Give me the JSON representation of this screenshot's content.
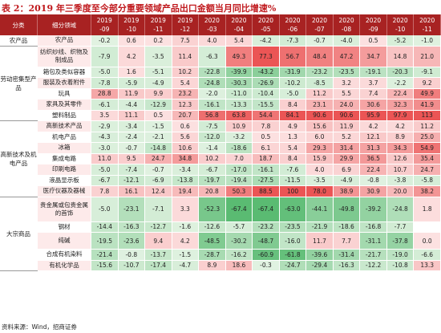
{
  "title": "表 2：2019 年三季度至今部分重要领域产品出口金额当月同比增速%",
  "header": {
    "cat": "分类",
    "sub": "细分领域",
    "months": [
      [
        "2019",
        "-09"
      ],
      [
        "2019",
        "-10"
      ],
      [
        "2019",
        "-11"
      ],
      [
        "2019",
        "-12"
      ],
      [
        "2020",
        "-03"
      ],
      [
        "2020",
        "-04"
      ],
      [
        "2020",
        "-05"
      ],
      [
        "2020",
        "-06"
      ],
      [
        "2020",
        "-07"
      ],
      [
        "2020",
        "-08"
      ],
      [
        "2020",
        "-09"
      ],
      [
        "2020",
        "-10"
      ],
      [
        "2020",
        "-11"
      ]
    ]
  },
  "groups": [
    {
      "name": "农产品",
      "rows": [
        {
          "name": "农产品",
          "cls": "r13",
          "v": [
            "-0.2",
            "0.6",
            "0.2",
            "7.5",
            "4.0",
            "5.4",
            "-4.2",
            "-7.3",
            "-0.7",
            "-4.0",
            "0.5",
            "-5.2",
            "-1.0"
          ]
        }
      ]
    },
    {
      "name": "劳动密集型产品",
      "rows": [
        {
          "name": "纺织纱线、织物及制成品",
          "cls": "r25",
          "v": [
            "-7.9",
            "4.2",
            "-3.5",
            "11.4",
            "-6.3",
            "49.3",
            "77.3",
            "56.7",
            "48.4",
            "47.2",
            "34.7",
            "14.8",
            "21.0"
          ]
        },
        {
          "name": "箱包及类似容器",
          "cls": "r13",
          "v": [
            "-5.0",
            "1.6",
            "-5.1",
            "10.2",
            "-22.8",
            "-39.9",
            "-43.2",
            "-31.9",
            "-23.2",
            "-23.5",
            "-19.1",
            "-20.3",
            "-9.1"
          ]
        },
        {
          "name": "服装及衣着附件",
          "cls": "r13",
          "v": [
            "-7.8",
            "-5.9",
            "-4.9",
            "5.4",
            "-24.8",
            "-30.3",
            "-26.9",
            "-10.2",
            "-8.5",
            "3.2",
            "3.7",
            "-2.2",
            "9.2"
          ]
        },
        {
          "name": "玩具",
          "cls": "r13",
          "v": [
            "28.8",
            "11.9",
            "9.9",
            "23.2",
            "-2.0",
            "-11.0",
            "-10.4",
            "-5.0",
            "11.2",
            "5.5",
            "7.4",
            "22.4",
            "49.9"
          ]
        },
        {
          "name": "家具及其零件",
          "cls": "r13",
          "v": [
            "-6.1",
            "-4.4",
            "-12.9",
            "12.3",
            "-16.1",
            "-13.3",
            "-15.5",
            "8.4",
            "23.1",
            "24.0",
            "30.6",
            "32.3",
            "41.9"
          ]
        },
        {
          "name": "塑料制品",
          "cls": "r13",
          "v": [
            "3.5",
            "11.1",
            "0.5",
            "20.7",
            "56.8",
            "63.8",
            "54.4",
            "84.1",
            "90.6",
            "90.6",
            "95.9",
            "97.9",
            "113"
          ]
        }
      ]
    },
    {
      "name": "高新技术及机电产品",
      "rows": [
        {
          "name": "高新技术产品",
          "cls": "r13",
          "v": [
            "-2.9",
            "-3.4",
            "-1.5",
            "0.6",
            "-7.5",
            "10.9",
            "7.8",
            "4.9",
            "15.6",
            "11.9",
            "4.2",
            "4.2",
            "11.2"
          ]
        },
        {
          "name": "机电产品",
          "cls": "r13",
          "v": [
            "-4.3",
            "-2.4",
            "-2.1",
            "5.6",
            "-12.0",
            "-3.2",
            "0.5",
            "1.3",
            "6.0",
            "5.2",
            "12.1",
            "8.9",
            "25.0"
          ]
        },
        {
          "name": "冰箱",
          "cls": "r13",
          "v": [
            "-3.0",
            "-0.7",
            "-14.8",
            "10.6",
            "-1.4",
            "-18.6",
            "6.1",
            "5.4",
            "29.3",
            "31.4",
            "31.3",
            "34.3",
            "54.9"
          ]
        },
        {
          "name": "集成电路",
          "cls": "r13",
          "v": [
            "11.0",
            "9.5",
            "24.7",
            "34.8",
            "10.2",
            "7.0",
            "18.7",
            "8.4",
            "15.9",
            "29.9",
            "36.5",
            "12.6",
            "35.4"
          ]
        },
        {
          "name": "印刷电路",
          "cls": "r13",
          "v": [
            "-5.0",
            "-7.4",
            "-0.7",
            "-3.4",
            "-6.7",
            "-17.0",
            "-16.1",
            "-7.6",
            "4.0",
            "6.9",
            "22.4",
            "10.7",
            "24.7"
          ]
        },
        {
          "name": "液晶显示板",
          "cls": "r13",
          "v": [
            "-6.7",
            "-12.1",
            "-6.9",
            "-13.8",
            "-19.7",
            "-19.4",
            "-27.5",
            "-11.5",
            "-3.5",
            "-4.9",
            "-0.8",
            "-3.8",
            "-5.8"
          ]
        },
        {
          "name": "医疗仪器及器械",
          "cls": "r13",
          "v": [
            "7.8",
            "16.1",
            "12.4",
            "19.4",
            "20.8",
            "50.3",
            "88.5",
            "100",
            "78.0",
            "38.9",
            "30.9",
            "20.0",
            "38.2"
          ]
        }
      ]
    },
    {
      "name": "大宗商品",
      "rows": [
        {
          "name": "贵金属或包贵金属的首饰",
          "cls": "r30",
          "v": [
            "-5.0",
            "-23.1",
            "-7.1",
            "3.3",
            "-52.3",
            "-67.4",
            "-67.4",
            "-63.0",
            "-44.1",
            "-49.8",
            "-39.2",
            "-24.8",
            "1.8"
          ]
        },
        {
          "name": "钢材",
          "cls": "r13",
          "v": [
            "-14.4",
            "-16.3",
            "-12.7",
            "-1.6",
            "-12.6",
            "-5.7",
            "-23.2",
            "-23.5",
            "-21.9",
            "-18.6",
            "-16.8",
            "-7.7",
            ""
          ]
        },
        {
          "name": "纯碱",
          "cls": "r20",
          "v": [
            "-19.5",
            "-23.6",
            "9.4",
            "4.2",
            "-48.5",
            "-30.2",
            "-48.7",
            "-16.0",
            "11.7",
            "7.7",
            "-31.1",
            "-37.8",
            "0.0"
          ]
        },
        {
          "name": "合成有机染料",
          "cls": "r13",
          "v": [
            "-21.4",
            "-0.8",
            "-13.7",
            "-1.5",
            "-28.7",
            "-16.2",
            "-60.9",
            "-61.8",
            "-39.6",
            "-31.4",
            "-21.7",
            "-19.0",
            "-6.6"
          ]
        },
        {
          "name": "有机化学品",
          "cls": "r13",
          "v": [
            "-15.6",
            "-10.7",
            "-17.4",
            "-4.7",
            "8.9",
            "18.6",
            "-0.3",
            "-24.7",
            "-29.4",
            "-16.3",
            "-12.2",
            "-10.8",
            "13.3"
          ]
        }
      ]
    }
  ],
  "source": "资料来源：Wind，招商证券"
}
